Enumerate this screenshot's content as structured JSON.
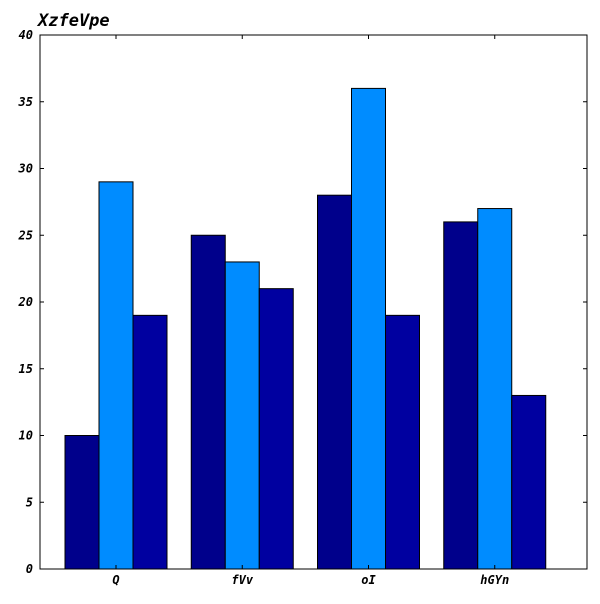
{
  "chart_data": {
    "type": "bar",
    "title": "XzfeVpe",
    "xlabel": "",
    "ylabel": "",
    "categories": [
      "Q",
      "fVv",
      "oI",
      "hGYn"
    ],
    "series": [
      {
        "values": [
          10,
          25,
          28,
          26
        ],
        "color": "#00008b"
      },
      {
        "values": [
          29,
          23,
          36,
          27
        ],
        "color": "#008cff"
      },
      {
        "values": [
          19,
          21,
          19,
          13
        ],
        "color": "#0000a0"
      }
    ],
    "ylim": [
      0,
      40
    ],
    "yticks": [
      0,
      5,
      10,
      15,
      20,
      25,
      30,
      35,
      40
    ],
    "grid": false,
    "legend": "none"
  }
}
